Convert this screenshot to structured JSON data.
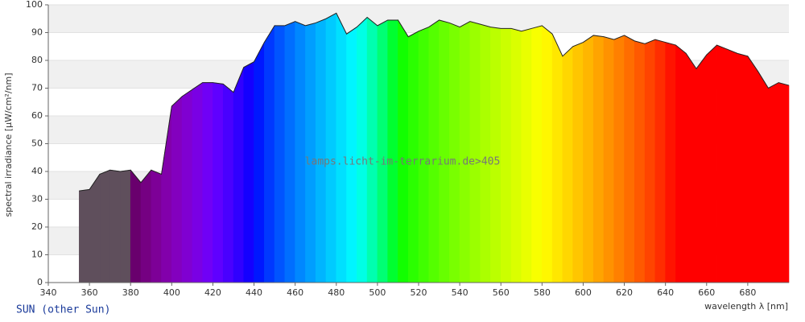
{
  "chart_data": {
    "type": "spectrum-area",
    "watermark": "lamps.licht-im-terrarium.de>405",
    "subtitle": "SUN (other Sun)",
    "y_label": "spectral irradiance [µW/cm²/nm]",
    "x_label": "wavelength λ [nm]",
    "x": [
      355,
      360,
      365,
      370,
      375,
      380,
      385,
      390,
      395,
      400,
      405,
      410,
      415,
      420,
      425,
      430,
      435,
      440,
      445,
      450,
      455,
      460,
      465,
      470,
      475,
      480,
      485,
      490,
      495,
      500,
      505,
      510,
      515,
      520,
      525,
      530,
      535,
      540,
      545,
      550,
      555,
      560,
      565,
      570,
      575,
      580,
      585,
      590,
      595,
      600,
      605,
      610,
      615,
      620,
      625,
      630,
      635,
      640,
      645,
      650,
      655,
      660,
      665,
      670,
      675,
      680,
      685,
      690,
      695,
      700
    ],
    "values": [
      33,
      33.5,
      39,
      40.5,
      40,
      40.5,
      36,
      40.5,
      39,
      63.5,
      67,
      69.5,
      72,
      72,
      71.5,
      68.5,
      77.5,
      79.5,
      86.5,
      92.5,
      92.5,
      94,
      92.5,
      93.5,
      95,
      97,
      89.5,
      92,
      95.5,
      92.5,
      94.5,
      94.5,
      88.5,
      90.5,
      92,
      94.5,
      93.5,
      92,
      94,
      93,
      92,
      91.5,
      91.5,
      90.5,
      91.5,
      92.5,
      89.5,
      81.5,
      85,
      86.5,
      89,
      88.5,
      87.5,
      89,
      87,
      86,
      87.5,
      86.5,
      85.5,
      82.5,
      77,
      82,
      85.5,
      84,
      82.5,
      81.5,
      76,
      70,
      72,
      71
    ],
    "uv_color": "#5f4f5c",
    "outline_color": "#222222",
    "xlim": [
      340,
      700
    ],
    "xticks": [
      340,
      360,
      380,
      400,
      420,
      440,
      460,
      480,
      500,
      520,
      540,
      560,
      580,
      600,
      620,
      640,
      660,
      680
    ],
    "ylim": [
      0,
      100
    ],
    "yticks": [
      0,
      10,
      20,
      30,
      40,
      50,
      60,
      70,
      80,
      90,
      100
    ],
    "grid": true
  }
}
